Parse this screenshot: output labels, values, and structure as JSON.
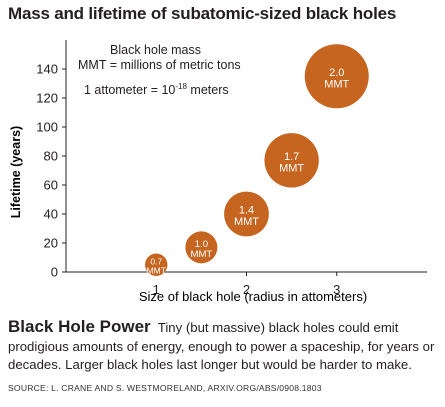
{
  "chart_data": {
    "type": "scatter",
    "title": "Mass and lifetime of subatomic-sized black holes",
    "xlabel": "Size of black hole (radius in attometers)",
    "ylabel": "Lifetime (years)",
    "xlim": [
      0,
      4
    ],
    "ylim": [
      0,
      160
    ],
    "x_ticks": [
      1,
      2,
      3
    ],
    "y_ticks": [
      0,
      20,
      40,
      60,
      80,
      100,
      120,
      140
    ],
    "grid": false,
    "points": [
      {
        "x": 1.0,
        "y": 5,
        "mass": 0.7,
        "label_value": "0.7",
        "label_unit": "MMT"
      },
      {
        "x": 1.5,
        "y": 17,
        "mass": 1.0,
        "label_value": "1.0",
        "label_unit": "MMT"
      },
      {
        "x": 2.0,
        "y": 40,
        "mass": 1.4,
        "label_value": "1.4",
        "label_unit": "MMT"
      },
      {
        "x": 2.5,
        "y": 77,
        "mass": 1.7,
        "label_value": "1.7",
        "label_unit": "MMT"
      },
      {
        "x": 3.0,
        "y": 135,
        "mass": 2.0,
        "label_value": "2.0",
        "label_unit": "MMT"
      }
    ],
    "bubble_color": "#c5651f",
    "legend": {
      "line1": "Black hole mass",
      "line2": "MMT = millions of metric tons",
      "line3_prefix": "1 attometer = 10",
      "line3_exponent": "-18",
      "line3_suffix": " meters"
    }
  },
  "caption": {
    "heading": "Black Hole Power",
    "body": "Tiny (but massive) black holes could emit prodigious amounts of energy, enough to power a spaceship, for years or decades. Larger black holes last longer but would be harder to make."
  },
  "source": "SOURCE: L. CRANE AND S. WESTMORELAND, ARXIV.ORG/ABS/0908.1803"
}
